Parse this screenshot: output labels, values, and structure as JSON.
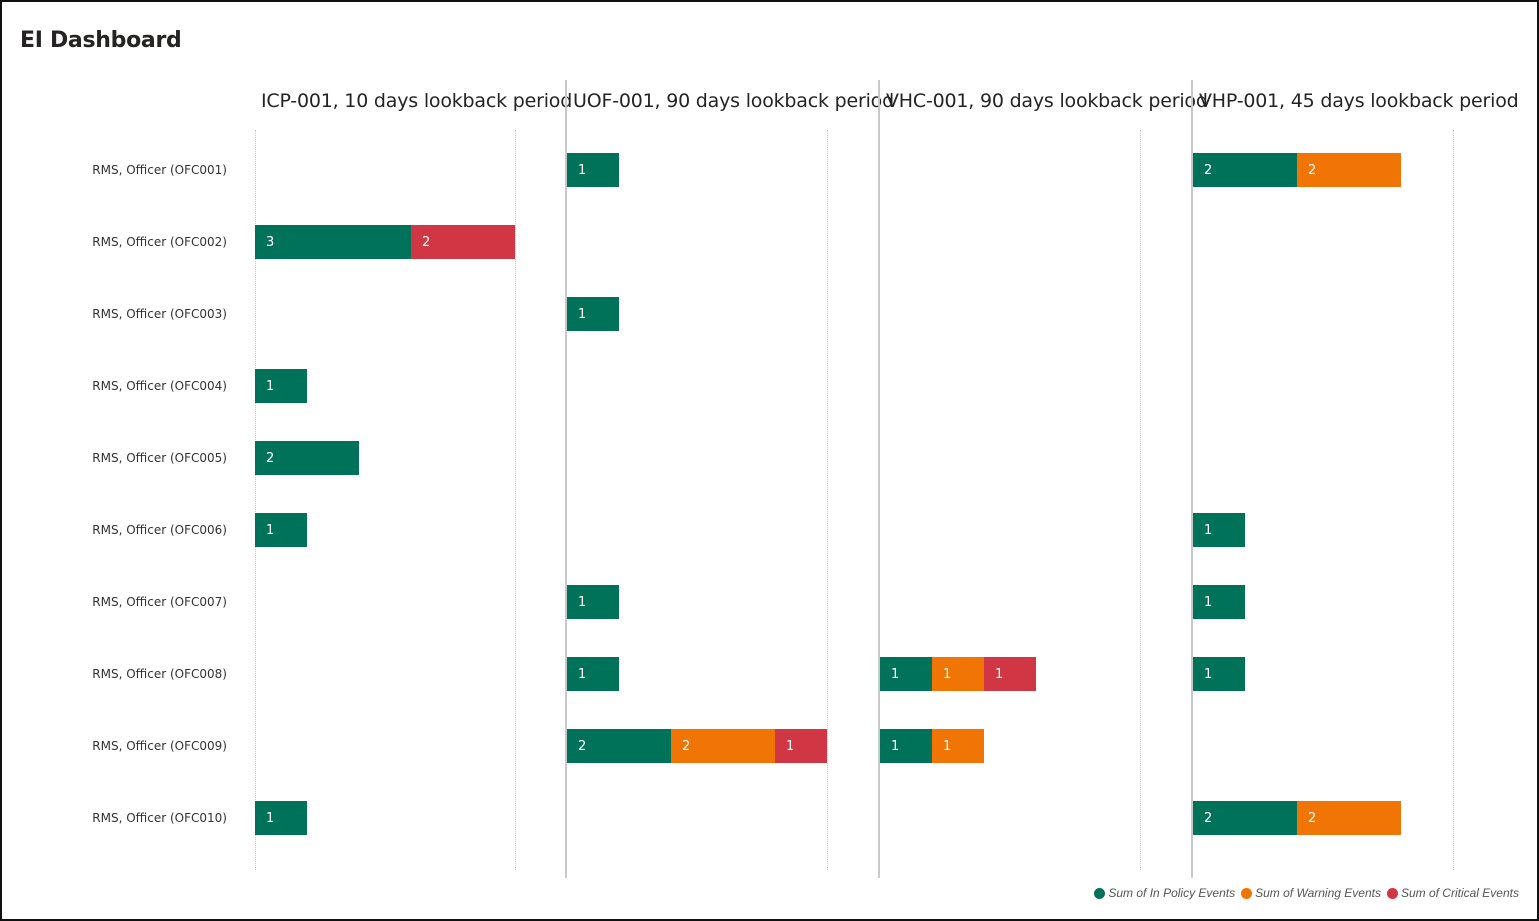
{
  "header": {
    "title": "EI Dashboard"
  },
  "colors": {
    "in_policy": "#00725A",
    "warning": "#F07504",
    "critical": "#D13644"
  },
  "legend": [
    {
      "label": "Sum of In Policy Events",
      "color": "#00725A"
    },
    {
      "label": "Sum of Warning Events",
      "color": "#F07504"
    },
    {
      "label": "Sum of Critical Events",
      "color": "#D13644"
    }
  ],
  "rows": [
    "RMS, Officer (OFC001)",
    "RMS, Officer (OFC002)",
    "RMS, Officer (OFC003)",
    "RMS, Officer (OFC004)",
    "RMS, Officer (OFC005)",
    "RMS, Officer (OFC006)",
    "RMS, Officer (OFC007)",
    "RMS, Officer (OFC008)",
    "RMS, Officer (OFC009)",
    "RMS, Officer (OFC010)"
  ],
  "panels": [
    {
      "title": "ICP-001, 10 days lookback period"
    },
    {
      "title": "UOF-001, 90 days lookback period"
    },
    {
      "title": "VHC-001, 90 days lookback period"
    },
    {
      "title": "VHP-001, 45 days lookback period"
    }
  ],
  "chart_data": {
    "type": "bar",
    "orientation": "horizontal",
    "stacked": true,
    "small_multiples": true,
    "title": "EI Dashboard",
    "categories": [
      "RMS, Officer (OFC001)",
      "RMS, Officer (OFC002)",
      "RMS, Officer (OFC003)",
      "RMS, Officer (OFC004)",
      "RMS, Officer (OFC005)",
      "RMS, Officer (OFC006)",
      "RMS, Officer (OFC007)",
      "RMS, Officer (OFC008)",
      "RMS, Officer (OFC009)",
      "RMS, Officer (OFC010)"
    ],
    "legend_position": "bottom-right",
    "xlim": [
      0,
      5
    ],
    "grid": true,
    "panels": [
      {
        "title": "ICP-001, 10 days lookback period",
        "series": [
          {
            "name": "Sum of In Policy Events",
            "values": [
              null,
              3,
              null,
              1,
              2,
              1,
              null,
              null,
              null,
              1
            ]
          },
          {
            "name": "Sum of Warning Events",
            "values": [
              null,
              null,
              null,
              null,
              null,
              null,
              null,
              null,
              null,
              null
            ]
          },
          {
            "name": "Sum of Critical Events",
            "values": [
              null,
              2,
              null,
              null,
              null,
              null,
              null,
              null,
              null,
              null
            ]
          }
        ]
      },
      {
        "title": "UOF-001, 90 days lookback period",
        "series": [
          {
            "name": "Sum of In Policy Events",
            "values": [
              1,
              null,
              1,
              null,
              null,
              null,
              1,
              1,
              2,
              null
            ]
          },
          {
            "name": "Sum of Warning Events",
            "values": [
              null,
              null,
              null,
              null,
              null,
              null,
              null,
              null,
              2,
              null
            ]
          },
          {
            "name": "Sum of Critical Events",
            "values": [
              null,
              null,
              null,
              null,
              null,
              null,
              null,
              null,
              1,
              null
            ]
          }
        ]
      },
      {
        "title": "VHC-001, 90 days lookback period",
        "series": [
          {
            "name": "Sum of In Policy Events",
            "values": [
              null,
              null,
              null,
              null,
              null,
              null,
              null,
              1,
              1,
              null
            ]
          },
          {
            "name": "Sum of Warning Events",
            "values": [
              null,
              null,
              null,
              null,
              null,
              null,
              null,
              1,
              1,
              null
            ]
          },
          {
            "name": "Sum of Critical Events",
            "values": [
              null,
              null,
              null,
              null,
              null,
              null,
              null,
              1,
              null,
              null
            ]
          }
        ]
      },
      {
        "title": "VHP-001, 45 days lookback period",
        "series": [
          {
            "name": "Sum of In Policy Events",
            "values": [
              2,
              null,
              null,
              null,
              null,
              1,
              1,
              1,
              null,
              2
            ]
          },
          {
            "name": "Sum of Warning Events",
            "values": [
              2,
              null,
              null,
              null,
              null,
              null,
              null,
              null,
              null,
              2
            ]
          },
          {
            "name": "Sum of Critical Events",
            "values": [
              null,
              null,
              null,
              null,
              null,
              null,
              null,
              null,
              null,
              null
            ]
          }
        ]
      }
    ]
  }
}
